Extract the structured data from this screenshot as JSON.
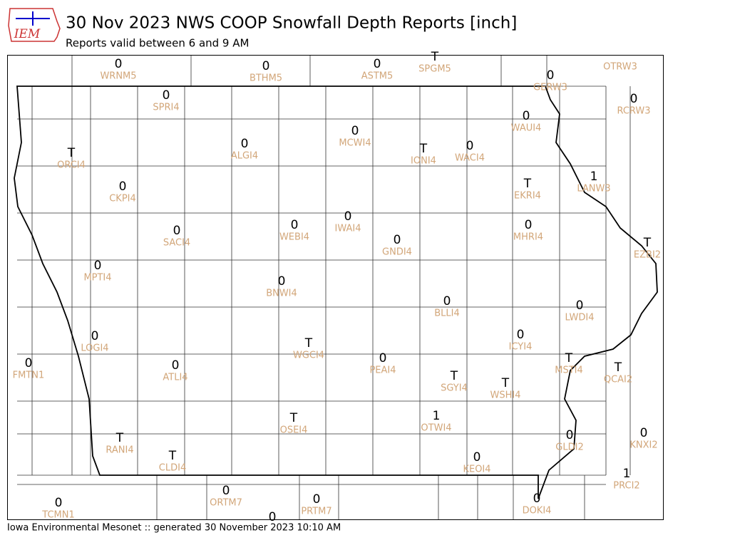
{
  "header": {
    "logo": "IEM",
    "title": "30 Nov 2023 NWS COOP Snowfall Depth Reports [inch]",
    "subtitle": "Reports valid between 6 and 9 AM"
  },
  "reports": [
    {
      "value": 0,
      "label": "WRNM5"
    },
    {
      "value": 0,
      "label": "BTHM5"
    },
    {
      "value": 0,
      "label": "ASTM5"
    },
    {
      "value": "T",
      "label": "SPGM5"
    },
    {
      "label": "OTRW3"
    },
    {
      "value": 0,
      "label": "GERW3"
    },
    {
      "value": 0,
      "label": "RCRW3"
    },
    {
      "value": 0,
      "label": "SPRI4"
    },
    {
      "value": 0,
      "label": "WAUI4"
    },
    {
      "value": 0,
      "label": "MCWI4"
    },
    {
      "value": 0,
      "label": "ALGI4"
    },
    {
      "value": "T",
      "label": "IONI4"
    },
    {
      "value": 0,
      "label": "WACI4"
    },
    {
      "value": "T",
      "label": "ORCI4"
    },
    {
      "value": 1,
      "label": "LANW3"
    },
    {
      "value": "T",
      "label": "EKRI4"
    },
    {
      "value": 0,
      "label": "CKPI4"
    },
    {
      "value": 0,
      "label": "WEBI4"
    },
    {
      "value": 0,
      "label": "IWAI4"
    },
    {
      "value": 0,
      "label": "MHRI4"
    },
    {
      "value": 0,
      "label": "SACI4"
    },
    {
      "value": 0,
      "label": "GNDI4"
    },
    {
      "value": "T",
      "label": "EZBI2"
    },
    {
      "value": 0,
      "label": "MPTI4"
    },
    {
      "value": 0,
      "label": "BNWI4"
    },
    {
      "value": 0,
      "label": "BLLI4"
    },
    {
      "value": 0,
      "label": "LWDI4"
    },
    {
      "value": 0,
      "label": "LOGI4"
    },
    {
      "value": 0,
      "label": "ICYI4"
    },
    {
      "value": "T",
      "label": "WGCI4"
    },
    {
      "value": "T",
      "label": "MSTI4"
    },
    {
      "value": 0,
      "label": "FMTN1"
    },
    {
      "value": 0,
      "label": "PEAI4"
    },
    {
      "value": "T",
      "label": "QCAI2"
    },
    {
      "value": 0,
      "label": "ATLI4"
    },
    {
      "value": "T",
      "label": "SGYI4"
    },
    {
      "value": "T",
      "label": "WSHI4"
    },
    {
      "value": 1,
      "label": "OTWI4"
    },
    {
      "value": "T",
      "label": "OSEI4"
    },
    {
      "value": 0,
      "label": "KNXI2"
    },
    {
      "value": "T",
      "label": "RANI4"
    },
    {
      "value": 0,
      "label": "GLDI2"
    },
    {
      "value": "T",
      "label": "CLDI4"
    },
    {
      "value": 0,
      "label": "KEOI4"
    },
    {
      "value": 1,
      "label": "PRCI2"
    },
    {
      "value": 0,
      "label": "ORTM7"
    },
    {
      "value": 0,
      "label": "PRTM7"
    },
    {
      "value": 0,
      "label": "TCMN1"
    },
    {
      "value": 0,
      "label": "DOKI4"
    },
    {
      "value": 0
    }
  ],
  "footer": "Iowa Environmental Mesonet :: generated 30 November 2023 10:10 AM"
}
